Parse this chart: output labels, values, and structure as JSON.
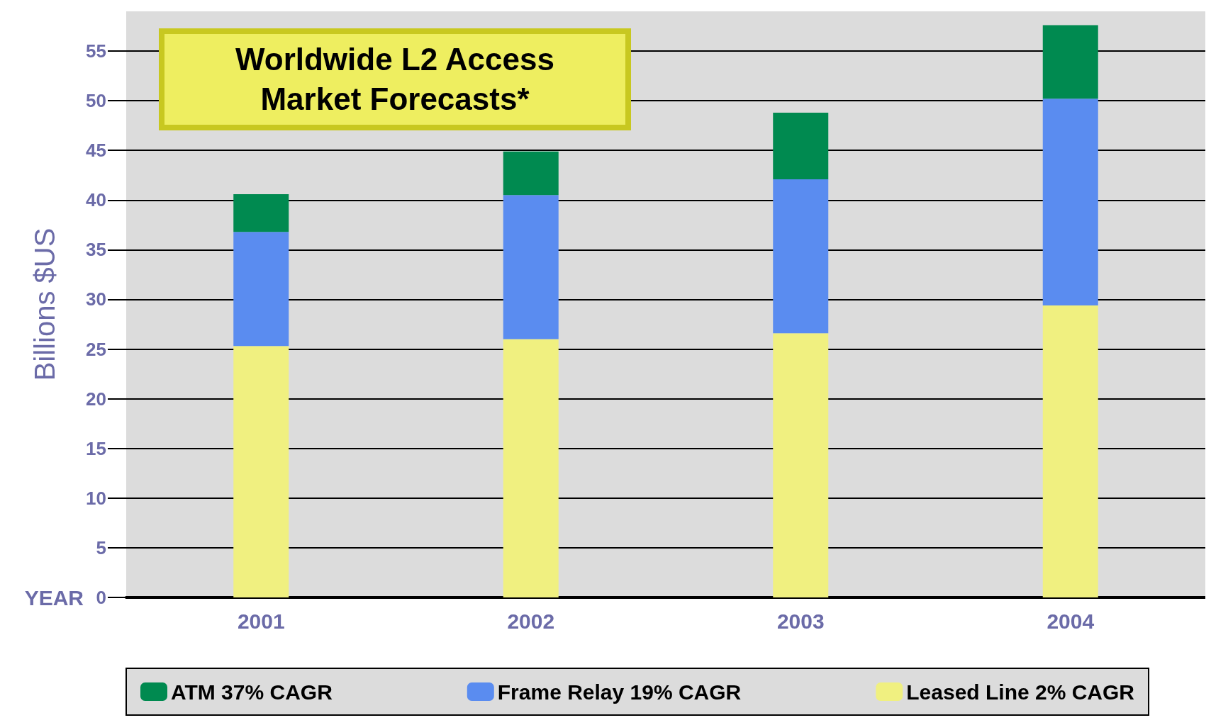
{
  "chart_data": {
    "type": "bar",
    "title": "Worldwide L2 Access\nMarket Forecasts*",
    "xlabel": "YEAR",
    "ylabel": "Billions $US",
    "categories": [
      "2001",
      "2002",
      "2003",
      "2004"
    ],
    "stacked": true,
    "series": [
      {
        "name": "Leased Line 2% CAGR",
        "color": "#f0f080",
        "values": [
          25.3,
          26.0,
          26.6,
          29.4
        ]
      },
      {
        "name": "Frame Relay 19% CAGR",
        "color": "#5a8cf0",
        "values": [
          11.5,
          14.5,
          15.5,
          20.8
        ]
      },
      {
        "name": "ATM 37% CAGR",
        "color": "#008a50",
        "values": [
          3.8,
          4.4,
          6.7,
          7.4
        ]
      }
    ],
    "ylim": [
      0,
      59
    ],
    "yticks": [
      0,
      5,
      10,
      15,
      20,
      25,
      30,
      35,
      40,
      45,
      50,
      55
    ],
    "grid": "y",
    "legend": "bottom"
  }
}
